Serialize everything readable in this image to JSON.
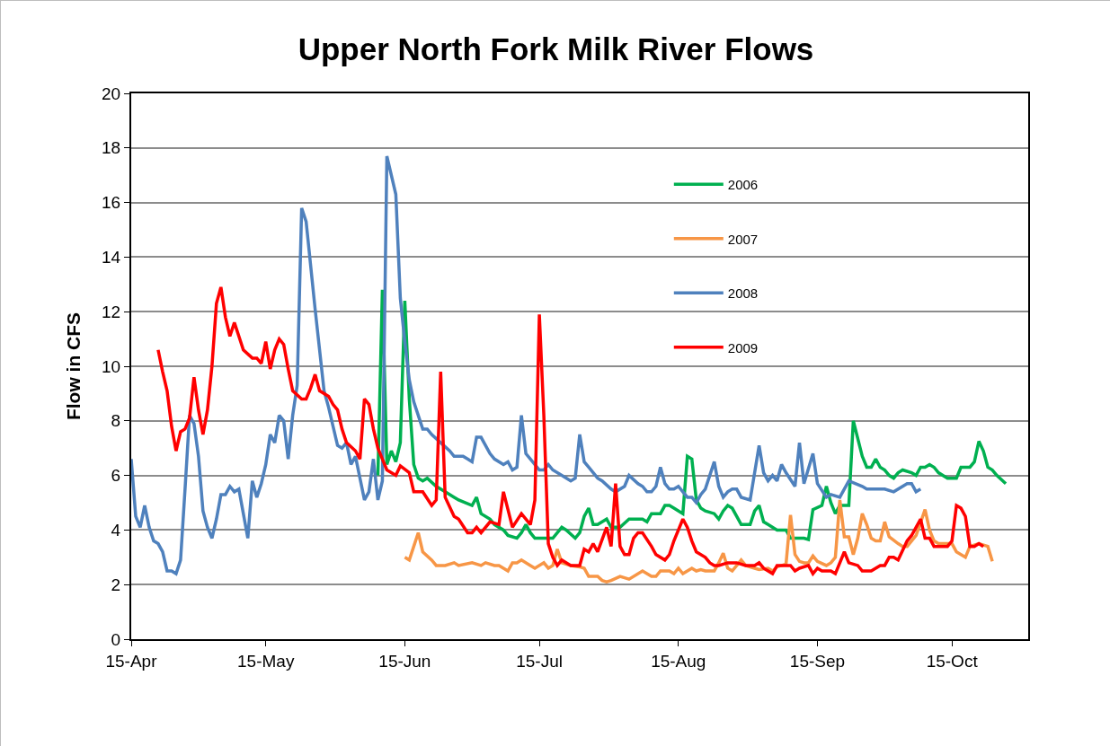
{
  "chart_data": {
    "type": "line",
    "title": "Upper North Fork Milk River Flows",
    "ylabel": "Flow in CFS",
    "xlim": [
      "--04-15",
      "--11-01"
    ],
    "xticks": [
      {
        "value": "--04-15",
        "label": "15-Apr"
      },
      {
        "value": "--05-15",
        "label": "15-May"
      },
      {
        "value": "--06-15",
        "label": "15-Jun"
      },
      {
        "value": "--07-15",
        "label": "15-Jul"
      },
      {
        "value": "--08-15",
        "label": "15-Aug"
      },
      {
        "value": "--09-15",
        "label": "15-Sep"
      },
      {
        "value": "--10-15",
        "label": "15-Oct"
      }
    ],
    "ylim": [
      0,
      20
    ],
    "yticks": [
      0,
      2,
      4,
      6,
      8,
      10,
      12,
      14,
      16,
      18,
      20
    ],
    "grid": "y",
    "legend": "top right",
    "series": [
      {
        "name": "2006",
        "color": "#00b050",
        "x": [
          "--06-09",
          "--06-10",
          "--06-11",
          "--06-12",
          "--06-13",
          "--06-14",
          "--06-15",
          "--06-16",
          "--06-17",
          "--06-18",
          "--06-19",
          "--06-20",
          "--06-22",
          "--06-24",
          "--06-26",
          "--06-27",
          "--06-30",
          "--07-01",
          "--07-02",
          "--07-04",
          "--07-05",
          "--07-07",
          "--07-08",
          "--07-10",
          "--07-11",
          "--07-12",
          "--07-13",
          "--07-14",
          "--07-15",
          "--07-17",
          "--07-18",
          "--07-20",
          "--07-21",
          "--07-23",
          "--07-24",
          "--07-25",
          "--07-26",
          "--07-27",
          "--07-28",
          "--07-30",
          "--07-31",
          "--08-02",
          "--08-04",
          "--08-07",
          "--08-08",
          "--08-09",
          "--08-10",
          "--08-11",
          "--08-12",
          "--08-13",
          "--08-14",
          "--08-16",
          "--08-17",
          "--08-18",
          "--08-19",
          "--08-20",
          "--08-21",
          "--08-23",
          "--08-24",
          "--08-25",
          "--08-26",
          "--08-27",
          "--08-28",
          "--08-29",
          "--08-31",
          "--09-01",
          "--09-02",
          "--09-03",
          "--09-04",
          "--09-06",
          "--09-08",
          "--09-09",
          "--09-11",
          "--09-12",
          "--09-13",
          "--09-14",
          "--09-16",
          "--09-17",
          "--09-18",
          "--09-19",
          "--09-20",
          "--09-22",
          "--09-23",
          "--09-25",
          "--09-26",
          "--09-27",
          "--09-28",
          "--09-29",
          "--09-30",
          "--10-01",
          "--10-02",
          "--10-03",
          "--10-04",
          "--10-06",
          "--10-07",
          "--10-08",
          "--10-09",
          "--10-10",
          "--10-11",
          "--10-12",
          "--10-14",
          "--10-16",
          "--10-17",
          "--10-19",
          "--10-20",
          "--10-21",
          "--10-22",
          "--10-23",
          "--10-24",
          "--10-25",
          "--10-27"
        ],
        "values": [
          6.0,
          12.8,
          6.4,
          6.9,
          6.5,
          7.2,
          12.4,
          8.8,
          6.4,
          5.9,
          5.8,
          5.9,
          5.6,
          5.4,
          5.2,
          5.1,
          4.9,
          5.2,
          4.6,
          4.4,
          4.2,
          4.0,
          3.8,
          3.7,
          3.9,
          4.2,
          3.9,
          3.7,
          3.7,
          3.7,
          3.7,
          4.1,
          4.0,
          3.7,
          3.9,
          4.5,
          4.8,
          4.2,
          4.2,
          4.4,
          4.1,
          4.1,
          4.4,
          4.4,
          4.3,
          4.6,
          4.6,
          4.6,
          4.9,
          4.9,
          4.8,
          4.6,
          6.7,
          6.6,
          5.1,
          4.8,
          4.7,
          4.6,
          4.4,
          4.7,
          4.9,
          4.8,
          4.5,
          4.2,
          4.2,
          4.7,
          4.9,
          4.3,
          4.2,
          4.0,
          4.0,
          3.7,
          3.7,
          3.7,
          3.65,
          4.75,
          4.9,
          5.6,
          5.0,
          4.6,
          4.9,
          4.9,
          8.0,
          6.7,
          6.3,
          6.3,
          6.6,
          6.3,
          6.2,
          6.0,
          5.9,
          6.1,
          6.2,
          6.1,
          6.0,
          6.3,
          6.3,
          6.4,
          6.3,
          6.1,
          5.9,
          5.9,
          6.3,
          6.3,
          6.5,
          7.25,
          6.9,
          6.3,
          6.2,
          6.0,
          5.7
        ]
      },
      {
        "name": "2007",
        "color": "#f79646",
        "x": [
          "--06-15",
          "--06-16",
          "--06-17",
          "--06-18",
          "--06-19",
          "--06-21",
          "--06-22",
          "--06-24",
          "--06-26",
          "--06-27",
          "--06-30",
          "--07-02",
          "--07-03",
          "--07-05",
          "--07-06",
          "--07-08",
          "--07-09",
          "--07-10",
          "--07-11",
          "--07-13",
          "--07-14",
          "--07-16",
          "--07-17",
          "--07-18",
          "--07-19",
          "--07-20",
          "--07-22",
          "--07-24",
          "--07-25",
          "--07-26",
          "--07-28",
          "--07-29",
          "--07-30",
          "--07-31",
          "--08-02",
          "--08-04",
          "--08-07",
          "--08-09",
          "--08-10",
          "--08-11",
          "--08-13",
          "--08-14",
          "--08-15",
          "--08-16",
          "--08-17",
          "--08-18",
          "--08-19",
          "--08-20",
          "--08-21",
          "--08-23",
          "--08-24",
          "--08-25",
          "--08-26",
          "--08-27",
          "--08-29",
          "--08-30",
          "--09-01",
          "--09-02",
          "--09-04",
          "--09-05",
          "--09-06",
          "--09-08",
          "--09-09",
          "--09-10",
          "--09-11",
          "--09-12",
          "--09-13",
          "--09-14",
          "--09-15",
          "--09-17",
          "--09-18",
          "--09-19",
          "--09-20",
          "--09-21",
          "--09-22",
          "--09-23",
          "--09-24",
          "--09-25",
          "--09-26",
          "--09-27",
          "--09-28",
          "--09-29",
          "--09-30",
          "--10-01",
          "--10-03",
          "--10-04",
          "--10-05",
          "--10-07",
          "--10-09",
          "--10-10",
          "--10-11",
          "--10-12",
          "--10-15",
          "--10-16",
          "--10-18",
          "--10-19",
          "--10-21",
          "--10-23",
          "--10-24"
        ],
        "values": [
          3.0,
          2.9,
          3.4,
          3.9,
          3.2,
          2.9,
          2.7,
          2.7,
          2.8,
          2.7,
          2.8,
          2.7,
          2.8,
          2.7,
          2.7,
          2.5,
          2.8,
          2.8,
          2.9,
          2.7,
          2.6,
          2.8,
          2.6,
          2.7,
          3.3,
          2.8,
          2.7,
          2.65,
          2.6,
          2.3,
          2.3,
          2.15,
          2.1,
          2.15,
          2.3,
          2.2,
          2.5,
          2.3,
          2.3,
          2.5,
          2.5,
          2.4,
          2.6,
          2.4,
          2.5,
          2.6,
          2.5,
          2.55,
          2.5,
          2.5,
          2.8,
          3.15,
          2.6,
          2.5,
          2.9,
          2.7,
          2.6,
          2.55,
          2.6,
          2.5,
          2.65,
          2.75,
          4.55,
          3.1,
          2.85,
          2.8,
          2.8,
          3.05,
          2.85,
          2.7,
          2.8,
          3.0,
          5.1,
          3.75,
          3.75,
          3.1,
          3.7,
          4.6,
          4.2,
          3.7,
          3.6,
          3.6,
          4.3,
          3.75,
          3.5,
          3.4,
          3.4,
          3.8,
          4.75,
          4.0,
          3.6,
          3.5,
          3.5,
          3.2,
          3.0,
          3.4,
          3.5,
          3.4,
          2.85
        ]
      },
      {
        "name": "2008",
        "color": "#4f81bd",
        "x": [
          "--04-15",
          "--04-16",
          "--04-17",
          "--04-18",
          "--04-19",
          "--04-20",
          "--04-21",
          "--04-22",
          "--04-23",
          "--04-24",
          "--04-25",
          "--04-26",
          "--04-27",
          "--04-28",
          "--04-29",
          "--04-30",
          "--05-01",
          "--05-02",
          "--05-03",
          "--05-04",
          "--05-05",
          "--05-06",
          "--05-07",
          "--05-08",
          "--05-09",
          "--05-10",
          "--05-11",
          "--05-12",
          "--05-13",
          "--05-14",
          "--05-15",
          "--05-16",
          "--05-17",
          "--05-18",
          "--05-19",
          "--05-20",
          "--05-21",
          "--05-22",
          "--05-23",
          "--05-24",
          "--05-26",
          "--05-28",
          "--05-29",
          "--05-30",
          "--05-31",
          "--06-01",
          "--06-02",
          "--06-03",
          "--06-04",
          "--06-05",
          "--06-06",
          "--06-07",
          "--06-08",
          "--06-09",
          "--06-10",
          "--06-11",
          "--06-13",
          "--06-14",
          "--06-15",
          "--06-16",
          "--06-17",
          "--06-19",
          "--06-20",
          "--06-21",
          "--06-23",
          "--06-25",
          "--06-26",
          "--06-28",
          "--06-29",
          "--06-30",
          "--07-01",
          "--07-02",
          "--07-04",
          "--07-05",
          "--07-07",
          "--07-08",
          "--07-09",
          "--07-10",
          "--07-11",
          "--07-12",
          "--07-15",
          "--07-16",
          "--07-17",
          "--07-18",
          "--07-20",
          "--07-22",
          "--07-23",
          "--07-24",
          "--07-25",
          "--07-26",
          "--07-28",
          "--07-29",
          "--07-31",
          "--08-01",
          "--08-03",
          "--08-04",
          "--08-06",
          "--08-07",
          "--08-08",
          "--08-09",
          "--08-10",
          "--08-11",
          "--08-12",
          "--08-13",
          "--08-14",
          "--08-15",
          "--08-16",
          "--08-17",
          "--08-18",
          "--08-19",
          "--08-20",
          "--08-21",
          "--08-23",
          "--08-24",
          "--08-25",
          "--08-26",
          "--08-27",
          "--08-28",
          "--08-29",
          "--08-31",
          "--09-02",
          "--09-03",
          "--09-04",
          "--09-05",
          "--09-06",
          "--09-07",
          "--09-08",
          "--09-10",
          "--09-11",
          "--09-12",
          "--09-14",
          "--09-15",
          "--09-17",
          "--09-18",
          "--09-20",
          "--09-22",
          "--09-25",
          "--09-26",
          "--09-30",
          "--10-02",
          "--10-05",
          "--10-06",
          "--10-07",
          "--10-08"
        ],
        "values": [
          6.6,
          4.5,
          4.1,
          4.9,
          4.1,
          3.6,
          3.5,
          3.2,
          2.5,
          2.5,
          2.4,
          2.9,
          5.5,
          8.2,
          7.9,
          6.7,
          4.7,
          4.1,
          3.7,
          4.4,
          5.3,
          5.3,
          5.6,
          5.4,
          5.5,
          4.6,
          3.7,
          5.8,
          5.2,
          5.7,
          6.4,
          7.5,
          7.2,
          8.2,
          8.0,
          6.6,
          8.2,
          9.3,
          15.8,
          15.3,
          12.1,
          9.1,
          8.5,
          7.8,
          7.1,
          7.0,
          7.2,
          6.4,
          6.7,
          5.9,
          5.1,
          5.4,
          6.6,
          5.1,
          5.8,
          17.7,
          16.3,
          12.5,
          10.9,
          9.5,
          8.7,
          7.7,
          7.7,
          7.5,
          7.2,
          6.9,
          6.7,
          6.7,
          6.6,
          6.5,
          7.4,
          7.4,
          6.8,
          6.6,
          6.4,
          6.5,
          6.2,
          6.3,
          8.2,
          6.8,
          6.2,
          6.2,
          6.4,
          6.2,
          6.0,
          5.8,
          5.9,
          7.5,
          6.5,
          6.3,
          5.9,
          5.8,
          5.5,
          5.4,
          5.6,
          6.0,
          5.7,
          5.6,
          5.4,
          5.4,
          5.6,
          6.3,
          5.7,
          5.5,
          5.5,
          5.6,
          5.4,
          5.2,
          5.2,
          5.0,
          5.3,
          5.5,
          6.5,
          5.6,
          5.2,
          5.4,
          5.5,
          5.5,
          5.2,
          5.1,
          7.1,
          6.1,
          5.8,
          6.0,
          5.8,
          6.4,
          6.1,
          5.6,
          7.2,
          5.7,
          6.8,
          5.7,
          5.2,
          5.3,
          5.2,
          5.8,
          5.6,
          5.5,
          5.5,
          5.4,
          5.7,
          5.7,
          5.4,
          5.5
        ]
      },
      {
        "name": "2009",
        "color": "#ff0000",
        "x": [
          "--04-21",
          "--04-22",
          "--04-23",
          "--04-24",
          "--04-25",
          "--04-26",
          "--04-27",
          "--04-28",
          "--04-29",
          "--04-30",
          "--05-01",
          "--05-02",
          "--05-03",
          "--05-04",
          "--05-05",
          "--05-06",
          "--05-07",
          "--05-08",
          "--05-09",
          "--05-10",
          "--05-12",
          "--05-13",
          "--05-14",
          "--05-15",
          "--05-16",
          "--05-17",
          "--05-18",
          "--05-19",
          "--05-20",
          "--05-21",
          "--05-23",
          "--05-24",
          "--05-25",
          "--05-26",
          "--05-27",
          "--05-29",
          "--05-30",
          "--05-31",
          "--06-01",
          "--06-02",
          "--06-04",
          "--06-05",
          "--06-06",
          "--06-07",
          "--06-08",
          "--06-09",
          "--06-11",
          "--06-13",
          "--06-14",
          "--06-16",
          "--06-17",
          "--06-19",
          "--06-21",
          "--06-22",
          "--06-23",
          "--06-24",
          "--06-26",
          "--06-27",
          "--06-29",
          "--06-30",
          "--07-01",
          "--07-02",
          "--07-04",
          "--07-06",
          "--07-07",
          "--07-09",
          "--07-11",
          "--07-13",
          "--07-14",
          "--07-15",
          "--07-16",
          "--07-17",
          "--07-18",
          "--07-19",
          "--07-20",
          "--07-22",
          "--07-24",
          "--07-25",
          "--07-26",
          "--07-27",
          "--07-28",
          "--07-30",
          "--07-31",
          "--08-01",
          "--08-02",
          "--08-03",
          "--08-04",
          "--08-05",
          "--08-06",
          "--08-07",
          "--08-09",
          "--08-10",
          "--08-12",
          "--08-13",
          "--08-14",
          "--08-16",
          "--08-17",
          "--08-18",
          "--08-19",
          "--08-21",
          "--08-22",
          "--08-23",
          "--08-24",
          "--08-26",
          "--08-28",
          "--08-30",
          "--09-01",
          "--09-02",
          "--09-03",
          "--09-05",
          "--09-06",
          "--09-07",
          "--09-09",
          "--09-10",
          "--09-11",
          "--09-13",
          "--09-14",
          "--09-15",
          "--09-16",
          "--09-18",
          "--09-19",
          "--09-21",
          "--09-22",
          "--09-24",
          "--09-25",
          "--09-27",
          "--09-29",
          "--09-30",
          "--10-01",
          "--10-02",
          "--10-03",
          "--10-05",
          "--10-06",
          "--10-07",
          "--10-08",
          "--10-09",
          "--10-10",
          "--10-11",
          "--10-12",
          "--10-14",
          "--10-15",
          "--10-16",
          "--10-17",
          "--10-18",
          "--10-19",
          "--10-20",
          "--10-21",
          "--10-22"
        ],
        "values": [
          10.6,
          9.8,
          9.1,
          7.8,
          6.9,
          7.6,
          7.7,
          8.1,
          9.6,
          8.4,
          7.5,
          8.4,
          10.0,
          12.3,
          12.9,
          11.8,
          11.1,
          11.6,
          11.1,
          10.6,
          10.3,
          10.3,
          10.1,
          10.9,
          9.9,
          10.6,
          11.0,
          10.8,
          9.9,
          9.1,
          8.8,
          8.8,
          9.2,
          9.7,
          9.1,
          8.9,
          8.6,
          8.4,
          7.7,
          7.2,
          6.9,
          6.6,
          8.8,
          8.6,
          7.7,
          7.0,
          6.2,
          6.0,
          6.35,
          6.1,
          5.4,
          5.4,
          4.9,
          5.1,
          9.8,
          5.2,
          4.5,
          4.4,
          3.9,
          3.9,
          4.1,
          3.9,
          4.3,
          4.2,
          5.4,
          4.1,
          4.6,
          4.2,
          5.1,
          11.9,
          8.2,
          3.5,
          3.0,
          2.7,
          2.9,
          2.7,
          2.7,
          3.3,
          3.2,
          3.5,
          3.2,
          4.1,
          3.4,
          5.7,
          3.4,
          3.1,
          3.1,
          3.7,
          3.9,
          3.9,
          3.4,
          3.1,
          2.9,
          3.1,
          3.6,
          4.4,
          4.1,
          3.6,
          3.2,
          3.0,
          2.8,
          2.7,
          2.7,
          2.8,
          2.8,
          2.7,
          2.7,
          2.8,
          2.6,
          2.4,
          2.7,
          2.7,
          2.7,
          2.5,
          2.6,
          2.7,
          2.4,
          2.6,
          2.5,
          2.5,
          2.4,
          3.2,
          2.8,
          2.7,
          2.5,
          2.5,
          2.7,
          2.7,
          3.0,
          3.0,
          2.9,
          3.6,
          3.8,
          4.1,
          4.4,
          3.7,
          3.7,
          3.4,
          3.4,
          3.4,
          3.6,
          4.9,
          4.8,
          4.5,
          3.4,
          3.4,
          3.5,
          3.4
        ]
      }
    ]
  }
}
